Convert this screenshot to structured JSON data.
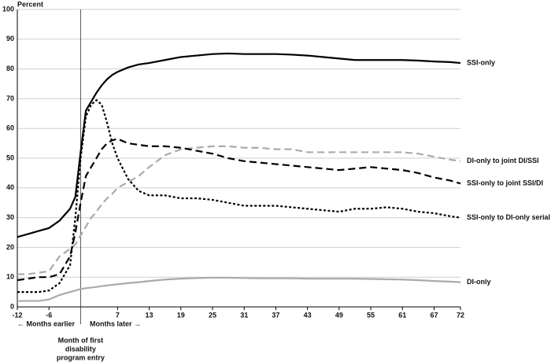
{
  "chart_data": {
    "type": "line",
    "y_label": "Percent",
    "x": [
      -12,
      -10,
      -8,
      -6,
      -4,
      -2,
      -1,
      0,
      1,
      2,
      3,
      4,
      5,
      6,
      7,
      9,
      11,
      13,
      16,
      19,
      22,
      25,
      28,
      31,
      34,
      37,
      40,
      43,
      46,
      49,
      52,
      55,
      58,
      61,
      64,
      67,
      70,
      72
    ],
    "series": [
      {
        "name": "SSI-only",
        "color": "#000000",
        "style": "solid",
        "values": [
          23.5,
          24.5,
          25.5,
          26.5,
          29,
          33,
          37,
          52,
          66,
          69,
          72,
          74.5,
          76.5,
          78,
          79,
          80.5,
          81.5,
          82,
          83,
          84,
          84.5,
          85,
          85.2,
          85,
          85,
          85,
          84.8,
          84.5,
          84,
          83.5,
          83,
          83,
          83,
          83,
          82.8,
          82.5,
          82.3,
          82
        ]
      },
      {
        "name": "DI-only to joint DI/SSI",
        "color": "#aaaaaa",
        "style": "dashed",
        "values": [
          11,
          11,
          11.5,
          12,
          17,
          19.5,
          21,
          24,
          27,
          30,
          32,
          34.5,
          36.5,
          38,
          40,
          42,
          44,
          47,
          51,
          53,
          53.5,
          54,
          54,
          53.5,
          53.5,
          53,
          53,
          52,
          52,
          52,
          52,
          52,
          52,
          52,
          51.5,
          50.5,
          49.5,
          49
        ]
      },
      {
        "name": "SSI-only to joint SSI/DI",
        "color": "#000000",
        "style": "dashed",
        "values": [
          9,
          9.5,
          10,
          10,
          11,
          17,
          25,
          35,
          44,
          47,
          50,
          53,
          55,
          56,
          56.5,
          55,
          54.5,
          54,
          54,
          53.5,
          52.5,
          51.5,
          50,
          49,
          48.5,
          48,
          47.5,
          47,
          46.5,
          46,
          46.5,
          47,
          46.5,
          46,
          45,
          43.5,
          42.5,
          41.5
        ]
      },
      {
        "name": "SSI-only to DI-only serial",
        "color": "#000000",
        "style": "dotted",
        "values": [
          5,
          5,
          5,
          5.5,
          8,
          14,
          30,
          50,
          64,
          68,
          69.5,
          68,
          62,
          55,
          50,
          43,
          39,
          37.5,
          37.5,
          36.5,
          36.5,
          36,
          35,
          34,
          34,
          34,
          33.5,
          33,
          32.5,
          32,
          33,
          33,
          33.5,
          33,
          32,
          31.5,
          30.5,
          30
        ]
      },
      {
        "name": "DI-only",
        "color": "#aaaaaa",
        "style": "solid",
        "values": [
          2,
          2,
          2,
          2.5,
          4,
          5,
          5.5,
          6,
          6.3,
          6.5,
          6.7,
          7,
          7.2,
          7.4,
          7.6,
          8,
          8.3,
          8.7,
          9.2,
          9.5,
          9.7,
          9.8,
          9.8,
          9.7,
          9.6,
          9.6,
          9.6,
          9.5,
          9.5,
          9.5,
          9.5,
          9.4,
          9.3,
          9.2,
          9,
          8.7,
          8.5,
          8.3
        ]
      }
    ],
    "xlim": [
      -12,
      72
    ],
    "xticks": [
      -12,
      -6,
      7,
      13,
      19,
      25,
      31,
      37,
      43,
      49,
      55,
      61,
      67,
      72
    ],
    "ylim": [
      0,
      100
    ],
    "yticks": [
      0,
      10,
      20,
      30,
      40,
      50,
      60,
      70,
      80,
      90,
      100
    ],
    "grid": true,
    "entry_x": 0,
    "earlier_label": "← Months earlier",
    "later_label": "Months later →",
    "entry_label": [
      "Month of first",
      "disability",
      "program entry"
    ]
  }
}
